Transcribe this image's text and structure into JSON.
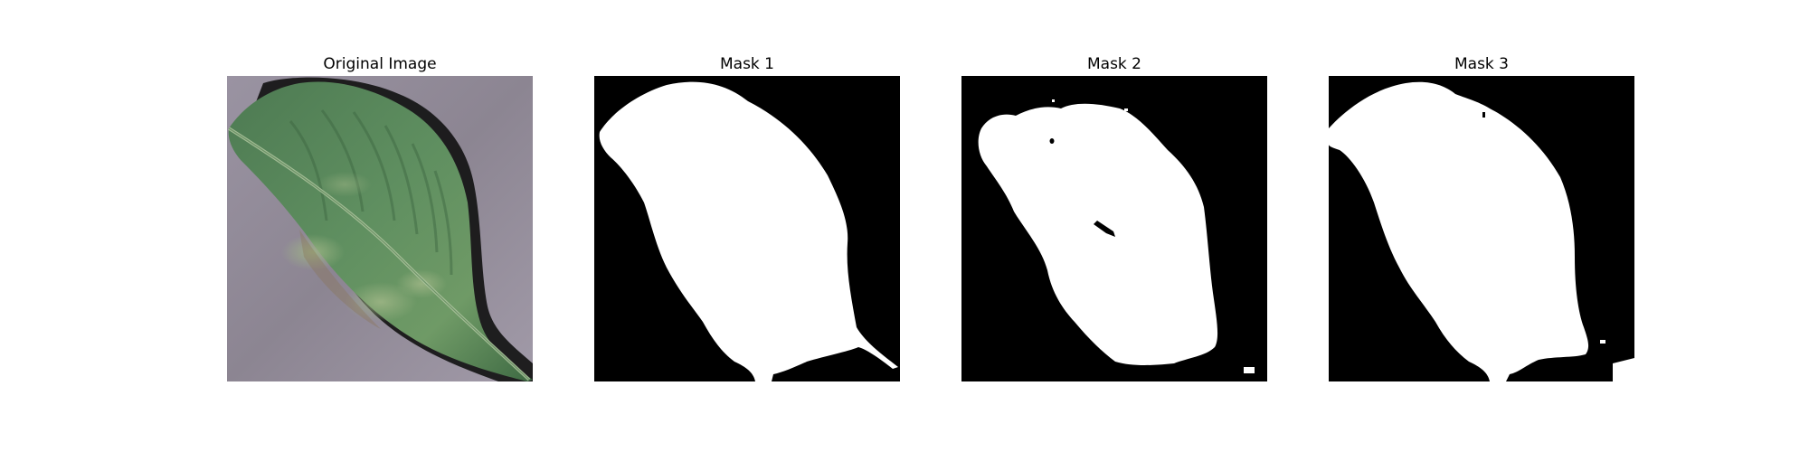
{
  "figure": {
    "panels": [
      {
        "title": "Original Image",
        "kind": "photo"
      },
      {
        "title": "Mask 1",
        "kind": "mask"
      },
      {
        "title": "Mask 2",
        "kind": "mask"
      },
      {
        "title": "Mask 3",
        "kind": "mask"
      }
    ]
  },
  "colors": {
    "background": "#ffffff",
    "mask_background": "#000000",
    "mask_foreground": "#ffffff",
    "leaf_dark": "#3f6b45",
    "leaf_mid": "#5e8f61",
    "leaf_light": "#89ad7f",
    "backdrop": "#8f8794"
  }
}
